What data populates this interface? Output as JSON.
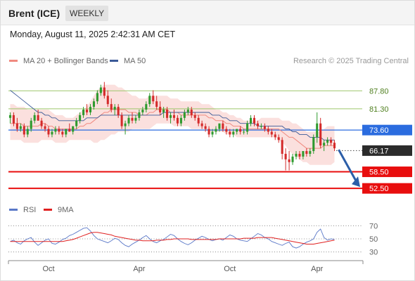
{
  "header": {
    "title": "Brent (ICE)",
    "period": "WEEKLY",
    "timestamp": "Monday, August 11, 2025 2:42:31 AM CET"
  },
  "legend": {
    "items": [
      {
        "label": "MA 20 + Bollinger Bands",
        "color": "#f08a80"
      },
      {
        "label": "MA 50",
        "color": "#3b5a98"
      }
    ],
    "credit": "Research © 2025 Trading Central"
  },
  "rsi_legend": {
    "items": [
      {
        "label": "RSI",
        "color": "#5a78c8"
      },
      {
        "label": "9MA",
        "color": "#e02020"
      }
    ]
  },
  "colors": {
    "up": "#2e9a2e",
    "down": "#d42a2a",
    "band_fill": "#fbe0de",
    "ma20": "#f08a80",
    "ma50": "#3b5a98",
    "support": "#e80e0e",
    "pivot": "#2b6cdf",
    "resistance": "#9dc66b",
    "current": "#2b2b2b",
    "arrow": "#2c5ea8"
  },
  "chart_data": [
    {
      "type": "candlestick",
      "title": "Brent (ICE)",
      "ylim": [
        50,
        96
      ],
      "x_ticks": [
        "Oct",
        "Apr",
        "Oct",
        "Apr"
      ],
      "candles": [
        {
          "o": 78,
          "h": 80,
          "l": 76,
          "c": 79
        },
        {
          "o": 79,
          "h": 80,
          "l": 75,
          "c": 76
        },
        {
          "o": 76,
          "h": 78,
          "l": 73,
          "c": 74
        },
        {
          "o": 74,
          "h": 76,
          "l": 73,
          "c": 75
        },
        {
          "o": 75,
          "h": 76,
          "l": 71,
          "c": 72
        },
        {
          "o": 72,
          "h": 75,
          "l": 71,
          "c": 74
        },
        {
          "o": 74,
          "h": 78,
          "l": 73,
          "c": 77
        },
        {
          "o": 77,
          "h": 80,
          "l": 76,
          "c": 79
        },
        {
          "o": 79,
          "h": 81,
          "l": 77,
          "c": 77
        },
        {
          "o": 77,
          "h": 78,
          "l": 74,
          "c": 75
        },
        {
          "o": 75,
          "h": 76,
          "l": 73,
          "c": 74
        },
        {
          "o": 74,
          "h": 75,
          "l": 71,
          "c": 72
        },
        {
          "o": 72,
          "h": 74,
          "l": 71,
          "c": 73
        },
        {
          "o": 73,
          "h": 75,
          "l": 72,
          "c": 74
        },
        {
          "o": 74,
          "h": 75,
          "l": 72,
          "c": 73
        },
        {
          "o": 73,
          "h": 74,
          "l": 71,
          "c": 72
        },
        {
          "o": 72,
          "h": 74,
          "l": 71,
          "c": 74
        },
        {
          "o": 74,
          "h": 76,
          "l": 73,
          "c": 73
        },
        {
          "o": 73,
          "h": 75,
          "l": 72,
          "c": 75
        },
        {
          "o": 75,
          "h": 78,
          "l": 74,
          "c": 77
        },
        {
          "o": 77,
          "h": 80,
          "l": 76,
          "c": 79
        },
        {
          "o": 79,
          "h": 82,
          "l": 78,
          "c": 81
        },
        {
          "o": 81,
          "h": 83,
          "l": 79,
          "c": 80
        },
        {
          "o": 80,
          "h": 83,
          "l": 79,
          "c": 82
        },
        {
          "o": 82,
          "h": 85,
          "l": 81,
          "c": 84
        },
        {
          "o": 84,
          "h": 88,
          "l": 83,
          "c": 87
        },
        {
          "o": 87,
          "h": 90,
          "l": 86,
          "c": 89
        },
        {
          "o": 89,
          "h": 91,
          "l": 85,
          "c": 86
        },
        {
          "o": 86,
          "h": 88,
          "l": 82,
          "c": 83
        },
        {
          "o": 83,
          "h": 85,
          "l": 80,
          "c": 81
        },
        {
          "o": 81,
          "h": 83,
          "l": 79,
          "c": 82
        },
        {
          "o": 82,
          "h": 83,
          "l": 78,
          "c": 79
        },
        {
          "o": 79,
          "h": 80,
          "l": 74,
          "c": 75
        },
        {
          "o": 75,
          "h": 77,
          "l": 72,
          "c": 76
        },
        {
          "o": 76,
          "h": 79,
          "l": 75,
          "c": 78
        },
        {
          "o": 78,
          "h": 80,
          "l": 76,
          "c": 77
        },
        {
          "o": 77,
          "h": 79,
          "l": 76,
          "c": 78
        },
        {
          "o": 78,
          "h": 81,
          "l": 77,
          "c": 80
        },
        {
          "o": 80,
          "h": 82,
          "l": 79,
          "c": 81
        },
        {
          "o": 81,
          "h": 84,
          "l": 80,
          "c": 83
        },
        {
          "o": 83,
          "h": 87,
          "l": 82,
          "c": 86
        },
        {
          "o": 86,
          "h": 88,
          "l": 83,
          "c": 84
        },
        {
          "o": 84,
          "h": 86,
          "l": 81,
          "c": 82
        },
        {
          "o": 82,
          "h": 84,
          "l": 79,
          "c": 80
        },
        {
          "o": 80,
          "h": 82,
          "l": 78,
          "c": 81
        },
        {
          "o": 81,
          "h": 82,
          "l": 77,
          "c": 78
        },
        {
          "o": 78,
          "h": 80,
          "l": 76,
          "c": 79
        },
        {
          "o": 79,
          "h": 81,
          "l": 77,
          "c": 78
        },
        {
          "o": 78,
          "h": 79,
          "l": 75,
          "c": 76
        },
        {
          "o": 76,
          "h": 79,
          "l": 75,
          "c": 78
        },
        {
          "o": 78,
          "h": 81,
          "l": 77,
          "c": 80
        },
        {
          "o": 80,
          "h": 82,
          "l": 79,
          "c": 81
        },
        {
          "o": 81,
          "h": 82,
          "l": 78,
          "c": 79
        },
        {
          "o": 79,
          "h": 80,
          "l": 77,
          "c": 78
        },
        {
          "o": 78,
          "h": 79,
          "l": 75,
          "c": 76
        },
        {
          "o": 76,
          "h": 77,
          "l": 74,
          "c": 75
        },
        {
          "o": 75,
          "h": 76,
          "l": 73,
          "c": 74
        },
        {
          "o": 74,
          "h": 75,
          "l": 71,
          "c": 72
        },
        {
          "o": 72,
          "h": 74,
          "l": 71,
          "c": 73
        },
        {
          "o": 73,
          "h": 75,
          "l": 72,
          "c": 74
        },
        {
          "o": 74,
          "h": 76,
          "l": 73,
          "c": 76
        },
        {
          "o": 76,
          "h": 77,
          "l": 73,
          "c": 74
        },
        {
          "o": 74,
          "h": 75,
          "l": 72,
          "c": 73
        },
        {
          "o": 73,
          "h": 74,
          "l": 71,
          "c": 72
        },
        {
          "o": 72,
          "h": 74,
          "l": 71,
          "c": 73
        },
        {
          "o": 73,
          "h": 74,
          "l": 72,
          "c": 74
        },
        {
          "o": 74,
          "h": 75,
          "l": 72,
          "c": 73
        },
        {
          "o": 73,
          "h": 74,
          "l": 72,
          "c": 73
        },
        {
          "o": 73,
          "h": 77,
          "l": 72,
          "c": 76
        },
        {
          "o": 76,
          "h": 79,
          "l": 75,
          "c": 78
        },
        {
          "o": 78,
          "h": 79,
          "l": 75,
          "c": 76
        },
        {
          "o": 76,
          "h": 77,
          "l": 74,
          "c": 75
        },
        {
          "o": 75,
          "h": 76,
          "l": 74,
          "c": 75
        },
        {
          "o": 75,
          "h": 76,
          "l": 73,
          "c": 74
        },
        {
          "o": 74,
          "h": 75,
          "l": 72,
          "c": 73
        },
        {
          "o": 73,
          "h": 74,
          "l": 71,
          "c": 72
        },
        {
          "o": 72,
          "h": 73,
          "l": 70,
          "c": 71
        },
        {
          "o": 71,
          "h": 72,
          "l": 69,
          "c": 70
        },
        {
          "o": 70,
          "h": 71,
          "l": 63,
          "c": 65
        },
        {
          "o": 65,
          "h": 67,
          "l": 59,
          "c": 63
        },
        {
          "o": 63,
          "h": 66,
          "l": 59,
          "c": 62
        },
        {
          "o": 62,
          "h": 65,
          "l": 61,
          "c": 64
        },
        {
          "o": 64,
          "h": 66,
          "l": 63,
          "c": 65
        },
        {
          "o": 65,
          "h": 66,
          "l": 63,
          "c": 64
        },
        {
          "o": 64,
          "h": 66,
          "l": 63,
          "c": 66
        },
        {
          "o": 66,
          "h": 67,
          "l": 64,
          "c": 65
        },
        {
          "o": 65,
          "h": 67,
          "l": 64,
          "c": 66
        },
        {
          "o": 66,
          "h": 72,
          "l": 65,
          "c": 71
        },
        {
          "o": 71,
          "h": 80,
          "l": 69,
          "c": 76
        },
        {
          "o": 76,
          "h": 78,
          "l": 67,
          "c": 68
        },
        {
          "o": 68,
          "h": 70,
          "l": 66,
          "c": 69
        },
        {
          "o": 69,
          "h": 71,
          "l": 68,
          "c": 70
        },
        {
          "o": 70,
          "h": 71,
          "l": 68,
          "c": 69
        },
        {
          "o": 69,
          "h": 70,
          "l": 66,
          "c": 67
        }
      ],
      "ma20": [
        76,
        76,
        76,
        76,
        75,
        75,
        75,
        75,
        75,
        76,
        76,
        75,
        75,
        74,
        74,
        74,
        74,
        74,
        74,
        74,
        75,
        75,
        76,
        76,
        77,
        78,
        79,
        80,
        80,
        81,
        81,
        81,
        81,
        81,
        80,
        80,
        80,
        79,
        79,
        79,
        80,
        80,
        81,
        81,
        81,
        81,
        80,
        80,
        80,
        79,
        79,
        79,
        79,
        79,
        79,
        79,
        79,
        78,
        78,
        77,
        77,
        77,
        76,
        76,
        75,
        75,
        75,
        74,
        74,
        74,
        74,
        74,
        74,
        74,
        74,
        74,
        74,
        74,
        73,
        72,
        71,
        71,
        70,
        69,
        68,
        67,
        67,
        67,
        67,
        67,
        68,
        68,
        68,
        68
      ],
      "bb_upper": [
        83,
        83,
        82,
        82,
        82,
        81,
        81,
        81,
        81,
        81,
        81,
        81,
        80,
        79,
        79,
        79,
        78,
        78,
        78,
        79,
        80,
        81,
        82,
        84,
        86,
        88,
        89,
        90,
        90,
        90,
        90,
        89,
        89,
        88,
        87,
        86,
        86,
        85,
        85,
        85,
        86,
        86,
        86,
        86,
        86,
        86,
        85,
        85,
        85,
        84,
        84,
        84,
        84,
        84,
        84,
        83,
        83,
        83,
        82,
        81,
        81,
        80,
        80,
        79,
        79,
        78,
        78,
        77,
        77,
        77,
        77,
        77,
        78,
        78,
        78,
        78,
        78,
        78,
        77,
        77,
        77,
        76,
        76,
        75,
        74,
        73,
        73,
        73,
        73,
        73,
        74,
        75,
        75,
        75
      ],
      "bb_lower": [
        70,
        70,
        70,
        70,
        69,
        69,
        69,
        69,
        69,
        70,
        70,
        70,
        70,
        69,
        69,
        69,
        69,
        70,
        70,
        70,
        70,
        70,
        70,
        70,
        69,
        69,
        70,
        70,
        71,
        72,
        72,
        73,
        73,
        73,
        73,
        74,
        74,
        74,
        74,
        74,
        74,
        75,
        76,
        76,
        76,
        76,
        76,
        75,
        75,
        75,
        75,
        75,
        74,
        74,
        74,
        74,
        74,
        73,
        73,
        73,
        73,
        73,
        72,
        72,
        72,
        71,
        71,
        71,
        71,
        71,
        71,
        71,
        71,
        71,
        71,
        71,
        71,
        70,
        69,
        68,
        66,
        65,
        64,
        63,
        62,
        62,
        61,
        61,
        61,
        61,
        61,
        61,
        61,
        62
      ],
      "ma50": [
        88,
        87,
        86,
        85,
        84,
        83,
        82,
        81,
        80,
        80,
        79,
        79,
        78,
        78,
        77,
        77,
        77,
        77,
        77,
        77,
        77,
        77,
        78,
        78,
        78,
        78,
        79,
        79,
        79,
        79,
        79,
        79,
        79,
        79,
        79,
        79,
        79,
        79,
        79,
        79,
        79,
        79,
        79,
        79,
        80,
        80,
        80,
        80,
        80,
        80,
        80,
        80,
        80,
        80,
        80,
        80,
        80,
        80,
        79,
        79,
        79,
        78,
        78,
        77,
        77,
        77,
        76,
        76,
        76,
        76,
        76,
        75,
        75,
        75,
        75,
        75,
        75,
        75,
        75,
        74,
        74,
        73,
        73,
        72,
        72,
        72,
        71,
        71,
        71,
        71,
        70,
        70,
        70,
        70
      ],
      "levels": [
        {
          "label": "87.80",
          "value": 87.8,
          "kind": "resistance"
        },
        {
          "label": "81.30",
          "value": 81.3,
          "kind": "resistance"
        },
        {
          "label": "73.60",
          "value": 73.6,
          "kind": "pivot"
        },
        {
          "label": "66.17",
          "value": 66.17,
          "kind": "current"
        },
        {
          "label": "58.50",
          "value": 58.5,
          "kind": "support"
        },
        {
          "label": "52.50",
          "value": 52.5,
          "kind": "support"
        }
      ],
      "projection_target": 52.5
    },
    {
      "type": "line",
      "title": "RSI",
      "ylim": [
        20,
        80
      ],
      "y_ticks": [
        "70",
        "50",
        "30"
      ],
      "series": [
        {
          "name": "RSI",
          "values": [
            46,
            48,
            44,
            42,
            47,
            50,
            52,
            45,
            40,
            44,
            48,
            50,
            43,
            42,
            45,
            49,
            51,
            55,
            57,
            60,
            63,
            66,
            67,
            62,
            55,
            50,
            48,
            46,
            44,
            47,
            51,
            49,
            44,
            40,
            38,
            42,
            45,
            48,
            52,
            55,
            50,
            46,
            44,
            47,
            49,
            53,
            57,
            55,
            50,
            46,
            43,
            41,
            44,
            48,
            51,
            54,
            52,
            49,
            47,
            49,
            50,
            48,
            52,
            56,
            54,
            50,
            48,
            47,
            46,
            50,
            54,
            58,
            56,
            52,
            50,
            46,
            44,
            42,
            40,
            43,
            45,
            38,
            36,
            38,
            42,
            45,
            47,
            50,
            60,
            65,
            52,
            48,
            50,
            49
          ]
        },
        {
          "name": "9MA",
          "values": [
            46,
            46,
            46,
            46,
            46,
            46,
            46,
            46,
            46,
            46,
            46,
            46,
            46,
            46,
            46,
            46,
            47,
            48,
            49,
            51,
            53,
            55,
            57,
            59,
            60,
            60,
            59,
            58,
            57,
            56,
            54,
            53,
            52,
            51,
            50,
            49,
            48,
            48,
            47,
            47,
            47,
            47,
            48,
            48,
            48,
            49,
            49,
            50,
            50,
            50,
            50,
            50,
            49,
            49,
            49,
            49,
            49,
            49,
            49,
            49,
            50,
            50,
            50,
            50,
            50,
            50,
            50,
            51,
            51,
            51,
            51,
            52,
            52,
            52,
            52,
            52,
            51,
            50,
            49,
            48,
            47,
            46,
            45,
            44,
            43,
            42,
            42,
            42,
            43,
            44,
            45,
            46,
            47,
            48
          ]
        }
      ]
    }
  ]
}
